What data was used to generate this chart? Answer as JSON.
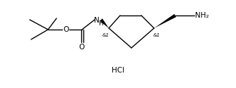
{
  "background_color": "#ffffff",
  "line_color": "#000000",
  "line_width": 1.0,
  "font_size": 6.5,
  "hcl_font_size": 7.5,
  "fig_width": 3.34,
  "fig_height": 1.25,
  "dpi": 100,
  "xlim": [
    0,
    334
  ],
  "ylim": [
    0,
    125
  ]
}
